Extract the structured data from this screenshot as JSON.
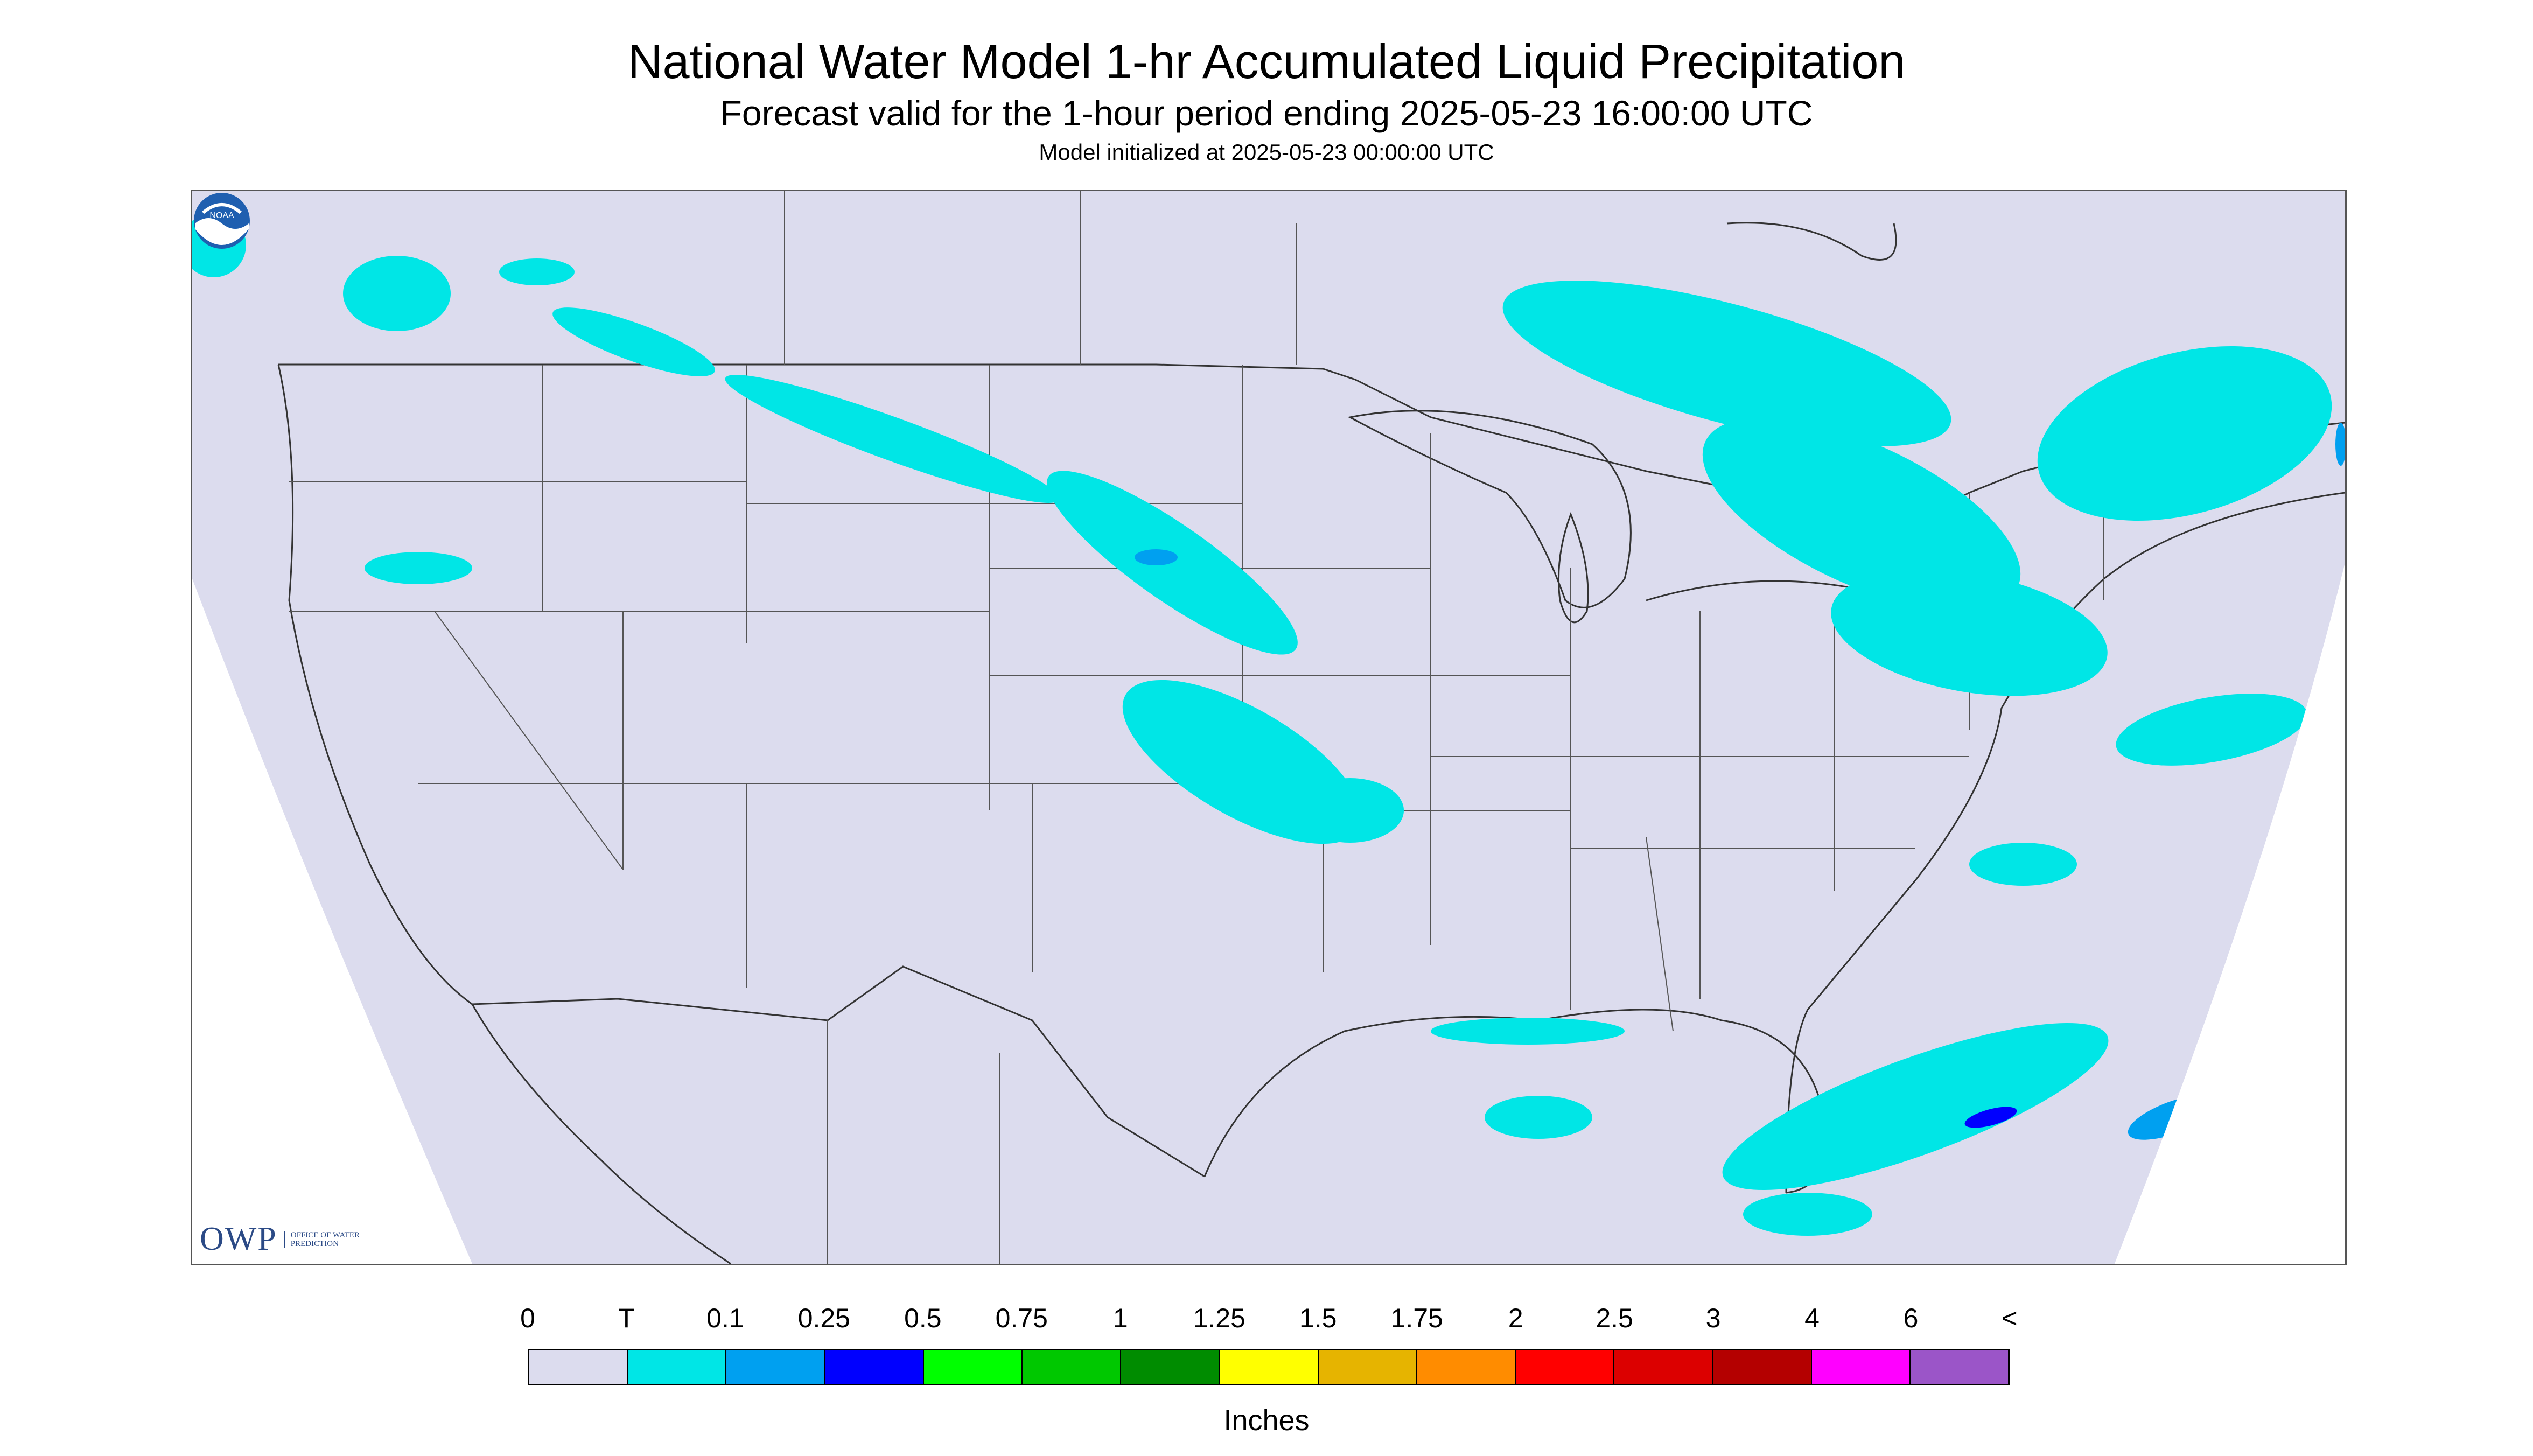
{
  "title": "National Water Model 1-hr Accumulated Liquid Precipitation",
  "subtitle": "Forecast valid for the 1-hour period ending 2025-05-23 16:00:00 UTC",
  "init_line": "Model initialized at 2025-05-23 00:00:00 UTC",
  "logos": {
    "owp_letters": "OWP",
    "owp_text": "Office of Water Prediction",
    "noaa_text": "NOAA"
  },
  "legend": {
    "labels": [
      "0",
      "T",
      "0.1",
      "0.25",
      "0.5",
      "0.75",
      "1",
      "1.25",
      "1.5",
      "1.75",
      "2",
      "2.5",
      "3",
      "4",
      "6",
      "<"
    ],
    "colors": [
      "#dcdcee",
      "#00e6e6",
      "#00a0f0",
      "#0000ff",
      "#00ff00",
      "#00c800",
      "#008c00",
      "#ffff00",
      "#e6b400",
      "#ff8c00",
      "#ff0000",
      "#dc0000",
      "#b40000",
      "#ff00ff",
      "#9b55c8"
    ],
    "units": "Inches"
  },
  "colors": {
    "domain_fill": "#dcdcee",
    "outside_fill": "#ffffff",
    "boundary": "#333333",
    "trace": "#00e6e6",
    "light": "#00a0f0",
    "moderate": "#0000ff"
  }
}
